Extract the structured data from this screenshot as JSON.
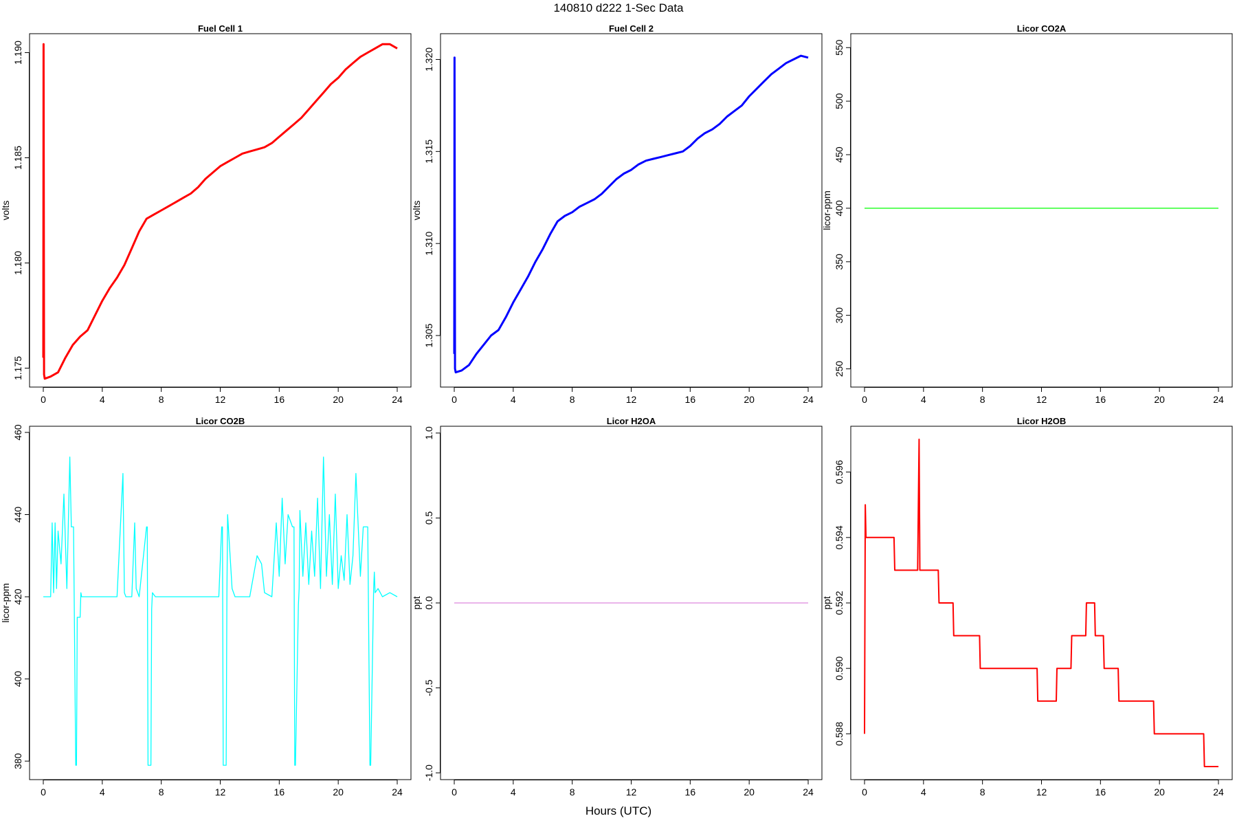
{
  "page": {
    "title": "140810   d222   1-Sec Data",
    "xlabel": "Hours (UTC)"
  },
  "chart_data": [
    {
      "type": "line",
      "title": "Fuel Cell 1",
      "ylabel": "volts",
      "color": "#ff0000",
      "xlim": [
        0,
        24
      ],
      "ylim": [
        1.1741,
        1.1909
      ],
      "xticks": [
        0,
        4,
        8,
        12,
        16,
        20,
        24
      ],
      "yticks": [
        1.175,
        1.18,
        1.185,
        1.19
      ],
      "ytick_labels": [
        "1.175",
        "1.180",
        "1.185",
        "1.190"
      ],
      "series": [
        {
          "x": [
            0,
            0.02,
            0.05,
            0.1,
            0.5,
            1.0,
            1.5,
            2.0,
            2.5,
            3.0,
            3.5,
            4.0,
            4.5,
            5.0,
            5.5,
            6.0,
            6.5,
            7.0,
            7.5,
            8.0,
            8.5,
            9.0,
            9.5,
            10.0,
            10.5,
            11.0,
            11.5,
            12.0,
            12.5,
            13.0,
            13.5,
            14.0,
            14.5,
            15.0,
            15.5,
            16.0,
            16.5,
            17.0,
            17.5,
            18.0,
            18.5,
            19.0,
            19.5,
            20.0,
            20.5,
            21.0,
            21.5,
            22.0,
            22.5,
            23.0,
            23.5,
            24.0
          ],
          "y": [
            1.1755,
            1.1904,
            1.1747,
            1.1745,
            1.1746,
            1.1748,
            1.1755,
            1.1761,
            1.1765,
            1.1768,
            1.1775,
            1.1782,
            1.1788,
            1.1793,
            1.1799,
            1.1807,
            1.1815,
            1.1821,
            1.1823,
            1.1825,
            1.1827,
            1.1829,
            1.1831,
            1.1833,
            1.1836,
            1.184,
            1.1843,
            1.1846,
            1.1848,
            1.185,
            1.1852,
            1.1853,
            1.1854,
            1.1855,
            1.1857,
            1.186,
            1.1863,
            1.1866,
            1.1869,
            1.1873,
            1.1877,
            1.1881,
            1.1885,
            1.1888,
            1.1892,
            1.1895,
            1.1898,
            1.19,
            1.1902,
            1.1904,
            1.1904,
            1.1902
          ]
        }
      ]
    },
    {
      "type": "line",
      "title": "Fuel Cell 2",
      "ylabel": "volts",
      "color": "#0000ff",
      "xlim": [
        0,
        24
      ],
      "ylim": [
        1.3022,
        1.3214
      ],
      "xticks": [
        0,
        4,
        8,
        12,
        16,
        20,
        24
      ],
      "yticks": [
        1.305,
        1.31,
        1.315,
        1.32
      ],
      "ytick_labels": [
        "1.305",
        "1.310",
        "1.315",
        "1.320"
      ],
      "series": [
        {
          "x": [
            0,
            0.02,
            0.05,
            0.1,
            0.5,
            1.0,
            1.5,
            2.0,
            2.5,
            3.0,
            3.5,
            4.0,
            4.5,
            5.0,
            5.5,
            6.0,
            6.5,
            7.0,
            7.5,
            8.0,
            8.5,
            9.0,
            9.5,
            10.0,
            10.5,
            11.0,
            11.5,
            12.0,
            12.5,
            13.0,
            13.5,
            14.0,
            14.5,
            15.0,
            15.5,
            16.0,
            16.5,
            17.0,
            17.5,
            18.0,
            18.5,
            19.0,
            19.5,
            20.0,
            20.5,
            21.0,
            21.5,
            22.0,
            22.5,
            23.0,
            23.5,
            24.0
          ],
          "y": [
            1.304,
            1.3201,
            1.3032,
            1.303,
            1.3031,
            1.3034,
            1.304,
            1.3045,
            1.305,
            1.3053,
            1.306,
            1.3068,
            1.3075,
            1.3082,
            1.309,
            1.3097,
            1.3105,
            1.3112,
            1.3115,
            1.3117,
            1.312,
            1.3122,
            1.3124,
            1.3127,
            1.3131,
            1.3135,
            1.3138,
            1.314,
            1.3143,
            1.3145,
            1.3146,
            1.3147,
            1.3148,
            1.3149,
            1.315,
            1.3153,
            1.3157,
            1.316,
            1.3162,
            1.3165,
            1.3169,
            1.3172,
            1.3175,
            1.318,
            1.3184,
            1.3188,
            1.3192,
            1.3195,
            1.3198,
            1.32,
            1.3202,
            1.3201
          ]
        }
      ]
    },
    {
      "type": "line",
      "title": "Licor CO2A",
      "ylabel": "licor-ppm",
      "color": "#00ff00",
      "xlim": [
        0,
        24
      ],
      "ylim": [
        233,
        563
      ],
      "xticks": [
        0,
        4,
        8,
        12,
        16,
        20,
        24
      ],
      "yticks": [
        250,
        300,
        350,
        400,
        450,
        500,
        550
      ],
      "ytick_labels": [
        "250",
        "300",
        "350",
        "400",
        "450",
        "500",
        "550"
      ],
      "series": [
        {
          "x": [
            0,
            24
          ],
          "y": [
            400,
            400
          ]
        }
      ]
    },
    {
      "type": "line",
      "title": "Licor CO2B",
      "ylabel": "licor-ppm",
      "color": "#00ffff",
      "xlim": [
        0,
        24
      ],
      "ylim": [
        375.5,
        461.5
      ],
      "xticks": [
        0,
        4,
        8,
        12,
        16,
        20,
        24
      ],
      "yticks": [
        380,
        400,
        420,
        440,
        460
      ],
      "ytick_labels": [
        "380",
        "400",
        "420",
        "440",
        "460"
      ],
      "series": [
        {
          "x": [
            0,
            0.5,
            0.6,
            0.7,
            0.8,
            0.9,
            1.0,
            1.2,
            1.4,
            1.6,
            1.8,
            1.9,
            2.0,
            2.05,
            2.2,
            2.25,
            2.3,
            2.5,
            2.55,
            2.6,
            3.0,
            4.0,
            5.0,
            5.4,
            5.5,
            5.6,
            6.0,
            6.2,
            6.3,
            6.5,
            7.0,
            7.05,
            7.1,
            7.3,
            7.35,
            7.4,
            7.6,
            8.0,
            8.5,
            9.0,
            10.0,
            11.0,
            11.9,
            12.1,
            12.15,
            12.2,
            12.4,
            12.45,
            12.5,
            12.8,
            13.0,
            13.5,
            14.0,
            14.5,
            14.8,
            15.0,
            15.5,
            15.8,
            16.0,
            16.2,
            16.4,
            16.6,
            16.9,
            17.0,
            17.05,
            17.1,
            17.3,
            17.35,
            17.4,
            17.6,
            17.8,
            18.0,
            18.2,
            18.4,
            18.6,
            18.8,
            19.0,
            19.2,
            19.4,
            19.6,
            19.8,
            20.0,
            20.2,
            20.4,
            20.6,
            20.8,
            21.0,
            21.2,
            21.5,
            21.7,
            21.8,
            22.0,
            22.15,
            22.2,
            22.4,
            22.45,
            22.5,
            22.7,
            23.0,
            23.5,
            24.0
          ],
          "y": [
            420,
            420,
            438,
            421,
            438,
            422,
            436,
            428,
            445,
            422,
            454,
            437,
            437,
            437,
            379,
            379,
            415,
            415,
            421,
            420,
            420,
            420,
            420,
            450,
            421,
            420,
            420,
            438,
            422,
            420,
            437,
            437,
            379,
            379,
            417,
            421,
            420,
            420,
            420,
            420,
            420,
            420,
            420,
            437,
            437,
            379,
            379,
            421,
            440,
            422,
            420,
            420,
            420,
            430,
            428,
            421,
            420,
            438,
            425,
            444,
            428,
            440,
            437,
            437,
            379,
            379,
            418,
            422,
            441,
            425,
            438,
            423,
            436,
            425,
            444,
            422,
            454,
            425,
            440,
            423,
            445,
            422,
            430,
            424,
            440,
            423,
            430,
            450,
            425,
            437,
            437,
            437,
            379,
            379,
            422,
            426,
            421,
            422,
            420,
            421,
            420
          ]
        }
      ]
    },
    {
      "type": "line",
      "title": "Licor H2OA",
      "ylabel": "ppt",
      "color": "#dd88dd",
      "xlim": [
        0,
        24
      ],
      "ylim": [
        -1.04,
        1.04
      ],
      "xticks": [
        0,
        4,
        8,
        12,
        16,
        20,
        24
      ],
      "yticks": [
        -1.0,
        -0.5,
        0.0,
        0.5,
        1.0
      ],
      "ytick_labels": [
        "-1.0",
        "-0.5",
        "0.0",
        "0.5",
        "1.0"
      ],
      "series": [
        {
          "x": [
            0,
            24
          ],
          "y": [
            0,
            0
          ]
        }
      ]
    },
    {
      "type": "line",
      "title": "Licor H2OB",
      "ylabel": "ppt",
      "color": "#ff0000",
      "xlim": [
        0,
        24
      ],
      "ylim": [
        0.5866,
        0.5974
      ],
      "xticks": [
        0,
        4,
        8,
        12,
        16,
        20,
        24
      ],
      "yticks": [
        0.588,
        0.59,
        0.592,
        0.594,
        0.596
      ],
      "ytick_labels": [
        "0.588",
        "0.590",
        "0.592",
        "0.594",
        "0.596"
      ],
      "series": [
        {
          "x": [
            0,
            0.05,
            0.1,
            2.0,
            2.05,
            3.6,
            3.7,
            3.75,
            4.5,
            5.0,
            5.05,
            6.0,
            6.05,
            7.0,
            7.05,
            7.8,
            7.85,
            10.5,
            10.55,
            11.7,
            11.75,
            13.0,
            13.05,
            14.0,
            14.05,
            15.0,
            15.05,
            15.6,
            15.65,
            16.2,
            16.25,
            17.2,
            17.25,
            18.5,
            18.55,
            19.6,
            19.65,
            22.2,
            22.25,
            23.0,
            23.05,
            24.0
          ],
          "y": [
            0.588,
            0.595,
            0.594,
            0.594,
            0.593,
            0.593,
            0.597,
            0.593,
            0.593,
            0.593,
            0.592,
            0.592,
            0.591,
            0.591,
            0.591,
            0.591,
            0.59,
            0.59,
            0.59,
            0.59,
            0.589,
            0.589,
            0.59,
            0.59,
            0.591,
            0.591,
            0.592,
            0.592,
            0.591,
            0.591,
            0.59,
            0.59,
            0.589,
            0.589,
            0.589,
            0.589,
            0.588,
            0.588,
            0.588,
            0.588,
            0.587,
            0.587
          ]
        }
      ]
    }
  ]
}
